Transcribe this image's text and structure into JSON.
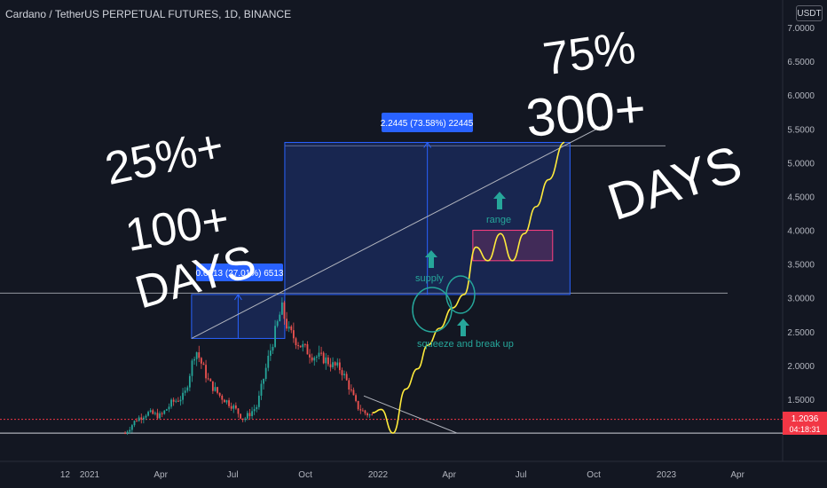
{
  "header": {
    "symbol_title": "Cardano / TetherUS PERPETUAL FUTURES, 1D, BINANCE",
    "currency": "USDT"
  },
  "colors": {
    "background": "#131722",
    "axis_text": "#b2b5be",
    "candle_up": "#26a69a",
    "candle_down": "#ef5350",
    "projection_box": "#1e3a8a",
    "projection_label": "#2962ff",
    "projection_path": "#ffeb3b",
    "annotation_teal": "#26a69a",
    "range_box": "#ff4081",
    "handwriting": "#ffffff",
    "last_price_badge": "#f23645"
  },
  "last_price": {
    "value": "1.2036",
    "countdown": "04:18:31"
  },
  "measurements": [
    {
      "label": "0.6513 (27.01%) 6513"
    },
    {
      "label": "2.2445 (73.58%) 22445"
    }
  ],
  "annotations": {
    "supply": "supply",
    "squeeze": "squeeze and break up",
    "range": "range"
  },
  "handwritten": {
    "left_line1": "25%+",
    "left_line2": "100+",
    "left_line3": "DAYS",
    "right_line1": "75%",
    "right_line2": "300+",
    "right_line3": "DAYS"
  },
  "chart_data": {
    "type": "candlestick",
    "title": "Cardano / TetherUS PERPETUAL FUTURES, 1D, BINANCE",
    "y_unit": "USDT",
    "ylim": [
      0.95,
      7.35
    ],
    "y_ticks": [
      "7.0000",
      "6.5000",
      "6.0000",
      "5.5000",
      "5.0000",
      "4.5000",
      "4.0000",
      "3.5000",
      "3.0000",
      "2.5000",
      "2.0000",
      "1.5000"
    ],
    "x_ticks": [
      "12",
      "2021",
      "Apr",
      "Jul",
      "Oct",
      "2022",
      "Apr",
      "Jul",
      "Oct",
      "2023",
      "Apr"
    ],
    "grid": false,
    "price_path": [
      {
        "t": "2021-02-15",
        "price": 1.0
      },
      {
        "t": "2021-03-01",
        "price": 1.2
      },
      {
        "t": "2021-03-15",
        "price": 1.3
      },
      {
        "t": "2021-04-01",
        "price": 1.25
      },
      {
        "t": "2021-04-15",
        "price": 1.45
      },
      {
        "t": "2021-05-01",
        "price": 1.55
      },
      {
        "t": "2021-05-15",
        "price": 2.25
      },
      {
        "t": "2021-06-01",
        "price": 1.75
      },
      {
        "t": "2021-06-15",
        "price": 1.55
      },
      {
        "t": "2021-07-01",
        "price": 1.4
      },
      {
        "t": "2021-07-15",
        "price": 1.2
      },
      {
        "t": "2021-08-01",
        "price": 1.4
      },
      {
        "t": "2021-08-15",
        "price": 2.1
      },
      {
        "t": "2021-09-01",
        "price": 2.85
      },
      {
        "t": "2021-09-10",
        "price": 2.5
      },
      {
        "t": "2021-09-25",
        "price": 2.3
      },
      {
        "t": "2021-10-10",
        "price": 2.15
      },
      {
        "t": "2021-10-25",
        "price": 2.1
      },
      {
        "t": "2021-11-05",
        "price": 2.0
      },
      {
        "t": "2021-11-15",
        "price": 1.95
      },
      {
        "t": "2021-11-25",
        "price": 1.7
      },
      {
        "t": "2021-12-05",
        "price": 1.4
      },
      {
        "t": "2021-12-15",
        "price": 1.3
      },
      {
        "t": "2021-12-25",
        "price": 1.25
      }
    ],
    "projection_path": [
      {
        "t": "2021-12-25",
        "price": 1.3
      },
      {
        "t": "2022-01-05",
        "price": 1.35
      },
      {
        "t": "2022-01-20",
        "price": 1.0
      },
      {
        "t": "2022-02-05",
        "price": 1.65
      },
      {
        "t": "2022-02-20",
        "price": 1.95
      },
      {
        "t": "2022-03-05",
        "price": 2.3
      },
      {
        "t": "2022-03-20",
        "price": 2.55
      },
      {
        "t": "2022-04-05",
        "price": 2.85
      },
      {
        "t": "2022-04-20",
        "price": 3.05
      },
      {
        "t": "2022-05-05",
        "price": 3.75
      },
      {
        "t": "2022-05-20",
        "price": 3.55
      },
      {
        "t": "2022-06-05",
        "price": 3.95
      },
      {
        "t": "2022-06-20",
        "price": 3.55
      },
      {
        "t": "2022-07-05",
        "price": 3.95
      },
      {
        "t": "2022-07-20",
        "price": 4.35
      },
      {
        "t": "2022-08-05",
        "price": 4.75
      },
      {
        "t": "2022-08-25",
        "price": 5.3
      }
    ],
    "measure_boxes": [
      {
        "from": "2021-05-10",
        "to": "2021-09-05",
        "low": 2.4,
        "high": 3.05,
        "change": "0.6513 (27.01%)"
      },
      {
        "from": "2021-09-05",
        "to": "2022-09-01",
        "low": 3.05,
        "high": 5.3,
        "change": "2.2445 (73.58%)"
      }
    ],
    "range_box": {
      "from": "2022-05-01",
      "to": "2022-08-10",
      "low": 3.55,
      "high": 4.0
    },
    "horizontal_lines": [
      3.07,
      5.25,
      1.0
    ],
    "last_price": 1.2036
  }
}
